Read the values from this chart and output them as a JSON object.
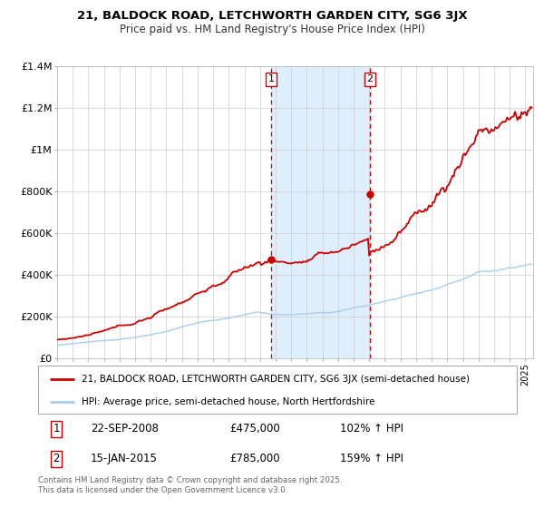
{
  "title1": "21, BALDOCK ROAD, LETCHWORTH GARDEN CITY, SG6 3JX",
  "title2": "Price paid vs. HM Land Registry's House Price Index (HPI)",
  "legend_line1": "21, BALDOCK ROAD, LETCHWORTH GARDEN CITY, SG6 3JX (semi-detached house)",
  "legend_line2": "HPI: Average price, semi-detached house, North Hertfordshire",
  "marker1_date": "22-SEP-2008",
  "marker1_price": "£475,000",
  "marker1_hpi": "102% ↑ HPI",
  "marker2_date": "15-JAN-2015",
  "marker2_price": "£785,000",
  "marker2_hpi": "159% ↑ HPI",
  "footer": "Contains HM Land Registry data © Crown copyright and database right 2025.\nThis data is licensed under the Open Government Licence v3.0.",
  "line1_color": "#cc0000",
  "line2_color": "#aaccee",
  "shade_color": "#ddeeff",
  "grid_color": "#cccccc",
  "ylim": [
    0,
    1400000
  ],
  "yticks": [
    0,
    200000,
    400000,
    600000,
    800000,
    1000000,
    1200000,
    1400000
  ],
  "ytick_labels": [
    "£0",
    "£200K",
    "£400K",
    "£600K",
    "£800K",
    "£1M",
    "£1.2M",
    "£1.4M"
  ],
  "marker1_x": 2008.73,
  "marker1_y": 475000,
  "marker2_x": 2015.04,
  "marker2_y": 785000,
  "xmin": 1995.0,
  "xmax": 2025.5
}
